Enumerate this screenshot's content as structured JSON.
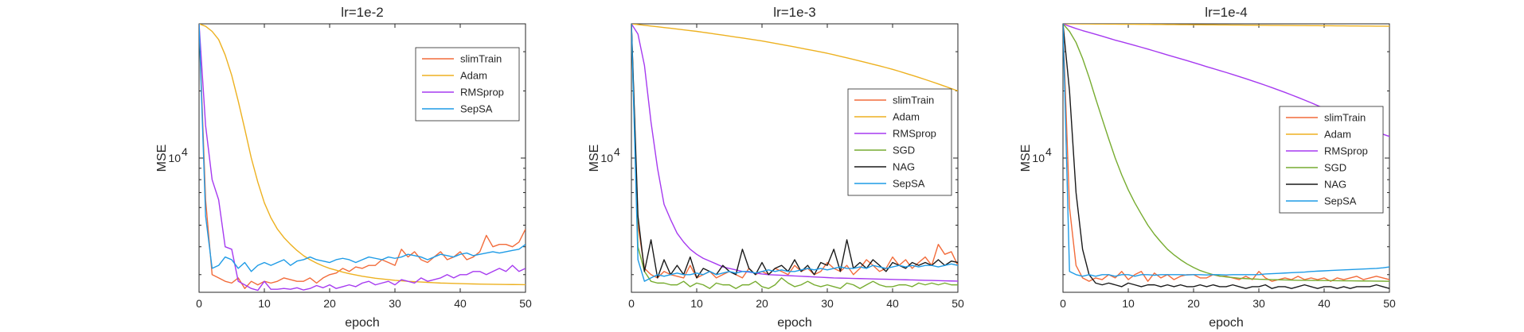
{
  "colors": {
    "slimTrain": "#F26B3A",
    "Adam": "#EDB120",
    "RMSprop": "#A63AF0",
    "SGD": "#77AC30",
    "NAG": "#1A1A1A",
    "SepSA": "#1E9BE6",
    "axis": "#262626"
  },
  "chart_data": [
    {
      "type": "line",
      "title": "lr=1e-2",
      "xlabel": "epoch",
      "ylabel": "MSE",
      "xlim": [
        0,
        50
      ],
      "xticks": [
        0,
        10,
        20,
        30,
        40,
        50
      ],
      "ytick_label": "10",
      "ytick_exp": "4",
      "ytick_value": 10000,
      "ylim": [
        2500,
        40000
      ],
      "legend_position": "top-right",
      "series": [
        {
          "name": "slimTrain",
          "color_key": "slimTrain",
          "x_step": 1,
          "values": [
            40000,
            6500,
            3000,
            2900,
            2800,
            2750,
            2900,
            2600,
            2800,
            2700,
            2800,
            2750,
            2800,
            2900,
            2850,
            2800,
            2800,
            2900,
            2750,
            2900,
            3000,
            3050,
            3200,
            3100,
            3250,
            3200,
            3300,
            3300,
            3500,
            3400,
            3300,
            3900,
            3600,
            3800,
            3500,
            3400,
            3600,
            3800,
            3500,
            3600,
            3800,
            3500,
            3600,
            3800,
            4500,
            4000,
            4100,
            4100,
            4000,
            4200,
            4800
          ]
        },
        {
          "name": "Adam",
          "color_key": "Adam",
          "x_step": 1,
          "values": [
            40000,
            39000,
            37000,
            34000,
            29000,
            23500,
            18000,
            13500,
            10000,
            7800,
            6300,
            5400,
            4800,
            4400,
            4100,
            3850,
            3650,
            3500,
            3380,
            3280,
            3200,
            3140,
            3080,
            3030,
            2990,
            2950,
            2920,
            2890,
            2870,
            2850,
            2830,
            2815,
            2800,
            2790,
            2780,
            2770,
            2760,
            2750,
            2745,
            2740,
            2735,
            2730,
            2725,
            2720,
            2718,
            2715,
            2712,
            2710,
            2708,
            2706,
            2705
          ]
        },
        {
          "name": "RMSprop",
          "color_key": "RMSprop",
          "x_step": 1,
          "values": [
            40000,
            14000,
            8000,
            6500,
            4000,
            3900,
            2800,
            2700,
            2600,
            2550,
            2800,
            2580,
            2580,
            2600,
            2580,
            2620,
            2560,
            2600,
            2680,
            2620,
            2700,
            2600,
            2650,
            2700,
            2650,
            2750,
            2800,
            2700,
            2750,
            2800,
            2700,
            2850,
            2800,
            2750,
            2900,
            2800,
            2850,
            2900,
            3000,
            2900,
            3000,
            3000,
            3100,
            3100,
            3000,
            3100,
            3200,
            3100,
            3300,
            3100,
            3200
          ]
        },
        {
          "name": "SepSA",
          "color_key": "SepSA",
          "x_step": 1,
          "values": [
            40000,
            5500,
            3200,
            3300,
            3600,
            3500,
            3200,
            3400,
            3100,
            3300,
            3400,
            3300,
            3400,
            3500,
            3300,
            3450,
            3500,
            3600,
            3500,
            3450,
            3400,
            3500,
            3550,
            3500,
            3400,
            3500,
            3600,
            3550,
            3500,
            3600,
            3550,
            3600,
            3700,
            3650,
            3600,
            3500,
            3600,
            3700,
            3650,
            3600,
            3700,
            3750,
            3650,
            3700,
            3750,
            3800,
            3750,
            3800,
            3850,
            3900,
            4100
          ]
        }
      ]
    },
    {
      "type": "line",
      "title": "lr=1e-3",
      "xlabel": "epoch",
      "ylabel": "MSE",
      "xlim": [
        0,
        50
      ],
      "xticks": [
        0,
        10,
        20,
        30,
        40,
        50
      ],
      "ytick_label": "10",
      "ytick_exp": "4",
      "ytick_value": 10000,
      "ylim": [
        2500,
        40000
      ],
      "legend_position": "upper-right",
      "series": [
        {
          "name": "slimTrain",
          "color_key": "slimTrain",
          "x_step": 1,
          "values": [
            40000,
            5000,
            3200,
            3000,
            2900,
            3100,
            3000,
            2950,
            2900,
            3300,
            2900,
            3000,
            3100,
            2900,
            3000,
            3100,
            3000,
            2900,
            3200,
            3000,
            3100,
            3000,
            3200,
            3100,
            3000,
            3300,
            3100,
            3200,
            3000,
            3100,
            3400,
            3200,
            3100,
            3300,
            3000,
            3200,
            3500,
            3300,
            3100,
            3200,
            3600,
            3300,
            3500,
            3200,
            3400,
            3600,
            3300,
            4100,
            3700,
            3800,
            3300
          ]
        },
        {
          "name": "Adam",
          "color_key": "Adam",
          "x_step": 1,
          "values": [
            40000,
            39700,
            39400,
            39100,
            38800,
            38500,
            38200,
            37900,
            37600,
            37300,
            37000,
            36650,
            36300,
            35950,
            35600,
            35250,
            34900,
            34550,
            34200,
            33850,
            33500,
            33100,
            32700,
            32300,
            31900,
            31500,
            31100,
            30700,
            30300,
            29900,
            29500,
            29050,
            28600,
            28150,
            27700,
            27250,
            26800,
            26350,
            25900,
            25450,
            25000,
            24500,
            24000,
            23500,
            23000,
            22500,
            22000,
            21500,
            21000,
            20500,
            20000
          ]
        },
        {
          "name": "RMSprop",
          "color_key": "RMSprop",
          "x_step": 1,
          "values": [
            40000,
            36000,
            26000,
            14500,
            9000,
            6200,
            5300,
            4600,
            4200,
            3900,
            3700,
            3550,
            3450,
            3350,
            3250,
            3200,
            3150,
            3100,
            3080,
            3050,
            3020,
            3000,
            2990,
            2980,
            2970,
            2960,
            2950,
            2940,
            2930,
            2920,
            2910,
            2900,
            2895,
            2890,
            2885,
            2880,
            2875,
            2870,
            2865,
            2860,
            2855,
            2850,
            2845,
            2840,
            2835,
            2830,
            2825,
            2820,
            2815,
            2810,
            2805
          ]
        },
        {
          "name": "SGD",
          "color_key": "SGD",
          "x_step": 1,
          "values": [
            40000,
            4000,
            3100,
            2800,
            2750,
            2750,
            2700,
            2700,
            2800,
            2650,
            2750,
            2700,
            2600,
            2750,
            2700,
            2700,
            2600,
            2700,
            2700,
            2800,
            2650,
            2600,
            2700,
            2900,
            2750,
            2650,
            2700,
            2800,
            2700,
            2650,
            2700,
            2650,
            2600,
            2750,
            2700,
            2600,
            2700,
            2800,
            2700,
            2650,
            2650,
            2700,
            2700,
            2650,
            2750,
            2700,
            2750,
            2700,
            2750,
            2700,
            2700
          ]
        },
        {
          "name": "NAG",
          "color_key": "NAG",
          "x_step": 1,
          "values": [
            40000,
            5500,
            3100,
            4300,
            2900,
            3500,
            3000,
            3300,
            3000,
            3600,
            2900,
            3200,
            3100,
            3000,
            3300,
            3100,
            3000,
            3900,
            3200,
            3000,
            3400,
            3000,
            3200,
            3300,
            3100,
            3500,
            3100,
            3300,
            3000,
            3400,
            3300,
            3900,
            3100,
            4300,
            3200,
            3400,
            3200,
            3500,
            3300,
            3100,
            3400,
            3300,
            3200,
            3400,
            3300,
            3400,
            3300,
            3500,
            3300,
            3450,
            3400
          ]
        },
        {
          "name": "SepSA",
          "color_key": "SepSA",
          "x_step": 1,
          "values": [
            40000,
            3500,
            2800,
            2900,
            3000,
            2950,
            3000,
            3050,
            3000,
            3000,
            3050,
            3000,
            3100,
            3000,
            3050,
            3100,
            3050,
            3100,
            3100,
            3050,
            3100,
            3150,
            3100,
            3150,
            3100,
            3100,
            3150,
            3200,
            3150,
            3200,
            3150,
            3200,
            3250,
            3200,
            3200,
            3250,
            3200,
            3300,
            3250,
            3200,
            3250,
            3300,
            3250,
            3300,
            3250,
            3300,
            3300,
            3250,
            3300,
            3350,
            3300
          ]
        }
      ]
    },
    {
      "type": "line",
      "title": "lr=1e-4",
      "xlabel": "epoch",
      "ylabel": "MSE",
      "xlim": [
        0,
        50
      ],
      "xticks": [
        0,
        10,
        20,
        30,
        40,
        50
      ],
      "ytick_label": "10",
      "ytick_exp": "4",
      "ytick_value": 10000,
      "ylim": [
        2500,
        40000
      ],
      "legend_position": "right",
      "series": [
        {
          "name": "slimTrain",
          "color_key": "slimTrain",
          "x_step": 1,
          "values": [
            40000,
            6000,
            3300,
            2900,
            2800,
            2900,
            2850,
            3000,
            2900,
            3100,
            2850,
            3000,
            3100,
            2800,
            3050,
            2900,
            3000,
            2850,
            2950,
            3000,
            3000,
            2900,
            2900,
            3000,
            2950,
            2950,
            2900,
            2850,
            2950,
            2850,
            3100,
            2900,
            2800,
            2850,
            2900,
            2850,
            2950,
            2850,
            2900,
            2850,
            2900,
            2800,
            2900,
            2850,
            2900,
            2950,
            2850,
            2900,
            2950,
            2900,
            2850
          ]
        },
        {
          "name": "Adam",
          "color_key": "Adam",
          "x_step": 1,
          "values": [
            40000,
            39990,
            39980,
            39960,
            39940,
            39920,
            39900,
            39880,
            39860,
            39840,
            39820,
            39800,
            39780,
            39760,
            39740,
            39720,
            39700,
            39680,
            39660,
            39640,
            39620,
            39600,
            39580,
            39560,
            39540,
            39520,
            39500,
            39480,
            39460,
            39440,
            39420,
            39400,
            39380,
            39360,
            39340,
            39320,
            39300,
            39280,
            39260,
            39240,
            39220,
            39200,
            39180,
            39160,
            39140,
            39120,
            39100,
            39080,
            39060,
            39040,
            39000
          ]
        },
        {
          "name": "RMSprop",
          "color_key": "RMSprop",
          "x_step": 1,
          "values": [
            40000,
            39000,
            38100,
            37300,
            36600,
            35900,
            35200,
            34500,
            33800,
            33200,
            32600,
            32000,
            31400,
            30800,
            30200,
            29600,
            29000,
            28450,
            27900,
            27350,
            26800,
            26250,
            25700,
            25200,
            24700,
            24200,
            23700,
            23200,
            22700,
            22200,
            21700,
            21200,
            20700,
            20200,
            19700,
            19200,
            18700,
            18200,
            17700,
            17200,
            16700,
            16250,
            15800,
            15350,
            14900,
            14450,
            14000,
            13600,
            13200,
            12800,
            12500
          ]
        },
        {
          "name": "SGD",
          "color_key": "SGD",
          "x_step": 1,
          "values": [
            40000,
            37000,
            33000,
            28000,
            23000,
            18500,
            15000,
            12200,
            10000,
            8400,
            7200,
            6300,
            5600,
            5000,
            4550,
            4200,
            3900,
            3680,
            3500,
            3350,
            3230,
            3130,
            3060,
            3000,
            2960,
            2930,
            2910,
            2890,
            2880,
            2870,
            2860,
            2855,
            2850,
            2845,
            2840,
            2835,
            2830,
            2828,
            2826,
            2824,
            2822,
            2820,
            2818,
            2816,
            2814,
            2812,
            2810,
            2808,
            2806,
            2804,
            2800
          ]
        },
        {
          "name": "NAG",
          "color_key": "NAG",
          "x_step": 1,
          "values": [
            40000,
            20000,
            7000,
            3900,
            3000,
            2750,
            2700,
            2750,
            2700,
            2650,
            2750,
            2700,
            2650,
            2700,
            2700,
            2650,
            2700,
            2650,
            2700,
            2650,
            2650,
            2700,
            2650,
            2700,
            2650,
            2650,
            2700,
            2650,
            2600,
            2650,
            2650,
            2700,
            2600,
            2650,
            2650,
            2600,
            2650,
            2700,
            2650,
            2600,
            2650,
            2650,
            2600,
            2650,
            2600,
            2650,
            2650,
            2650,
            2700,
            2650,
            2600
          ]
        },
        {
          "name": "SepSA",
          "color_key": "SepSA",
          "x_step": 1,
          "values": [
            40000,
            3100,
            3000,
            2950,
            3000,
            2950,
            3000,
            3000,
            2950,
            3000,
            3000,
            2950,
            3000,
            3000,
            2980,
            3000,
            3000,
            3000,
            3000,
            2990,
            3000,
            3000,
            2990,
            3000,
            3000,
            2990,
            3000,
            3000,
            3000,
            3000,
            3000,
            3020,
            3030,
            3040,
            3050,
            3060,
            3070,
            3080,
            3100,
            3110,
            3120,
            3130,
            3140,
            3150,
            3160,
            3170,
            3180,
            3190,
            3200,
            3220,
            3250
          ]
        }
      ]
    }
  ]
}
